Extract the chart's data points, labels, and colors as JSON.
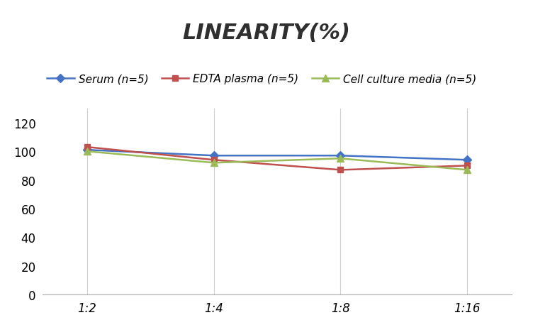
{
  "title": "LINEARITY(%)",
  "x_labels": [
    "1:2",
    "1:4",
    "1:8",
    "1:16"
  ],
  "x_positions": [
    0,
    1,
    2,
    3
  ],
  "series": [
    {
      "label": "Serum (n=5)",
      "values": [
        101,
        97,
        97,
        94
      ],
      "color": "#4472C4",
      "marker": "D",
      "marker_size": 6,
      "linewidth": 1.8
    },
    {
      "label": "EDTA plasma (n=5)",
      "values": [
        103,
        94,
        87,
        90
      ],
      "color": "#C0504D",
      "marker": "s",
      "marker_size": 6,
      "linewidth": 1.8
    },
    {
      "label": "Cell culture media (n=5)",
      "values": [
        100,
        92,
        95,
        87
      ],
      "color": "#9BBB59",
      "marker": "^",
      "marker_size": 7,
      "linewidth": 1.8
    }
  ],
  "ylim": [
    0,
    130
  ],
  "yticks": [
    0,
    20,
    40,
    60,
    80,
    100,
    120
  ],
  "grid_color": "#D0D0D0",
  "background_color": "#FFFFFF",
  "title_fontsize": 22,
  "legend_fontsize": 11,
  "tick_fontsize": 12
}
